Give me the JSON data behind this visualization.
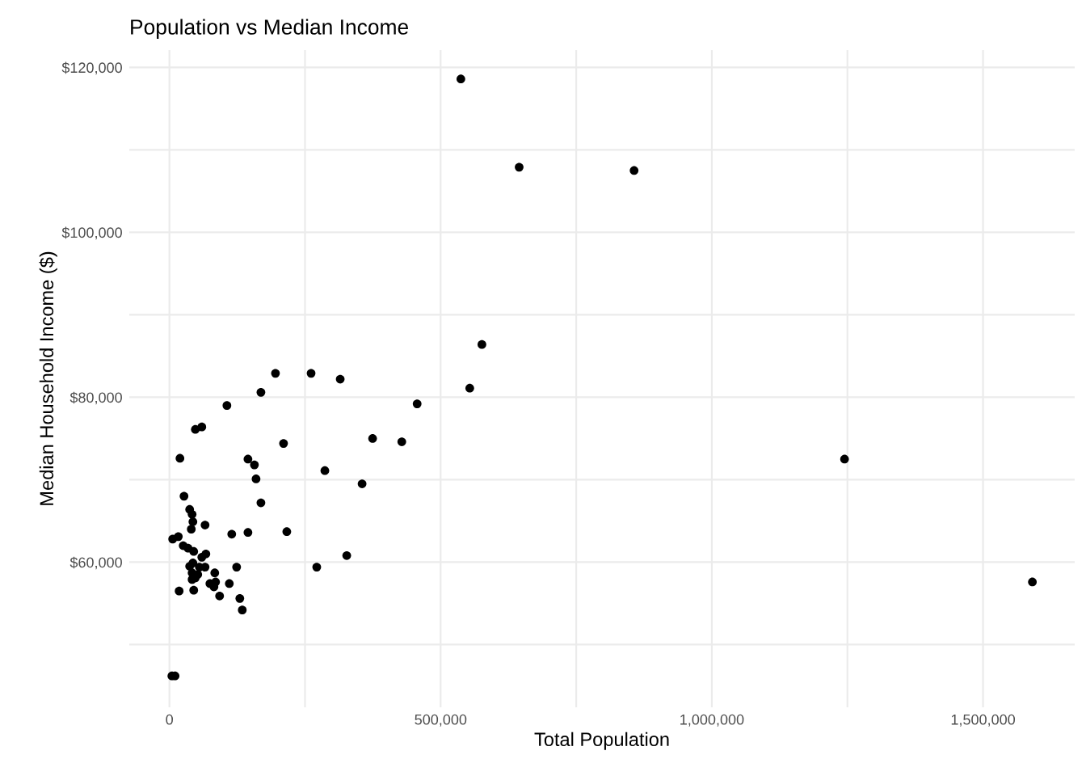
{
  "chart_data": {
    "type": "scatter",
    "title": "Population vs Median Income",
    "xlabel": "Total Population",
    "ylabel": "Median Household Income ($)",
    "x": [
      537300,
      644800,
      856700,
      576100,
      553700,
      456700,
      195500,
      261200,
      314900,
      168700,
      106000,
      59700,
      47800,
      374600,
      428400,
      210400,
      19400,
      144800,
      156700,
      286600,
      159700,
      355200,
      1244700,
      168700,
      26900,
      37300,
      41800,
      43300,
      40300,
      65700,
      114900,
      144800,
      216400,
      6000,
      16400,
      25400,
      34300,
      44800,
      67200,
      59700,
      326900,
      43300,
      37300,
      55200,
      65700,
      123900,
      271600,
      41800,
      52200,
      83600,
      41800,
      47800,
      74600,
      85100,
      82100,
      110400,
      17900,
      44800,
      92500,
      129800,
      134300,
      1591000,
      4500,
      10400
    ],
    "series": [
      {
        "color": "#000000",
        "values": [
          118600,
          107900,
          107500,
          86400,
          81100,
          79200,
          82900,
          82900,
          82200,
          80600,
          79000,
          76400,
          76100,
          75000,
          74600,
          74400,
          72600,
          72500,
          71800,
          71100,
          70100,
          69500,
          72500,
          67200,
          68000,
          66400,
          65800,
          64900,
          64000,
          64500,
          63400,
          63600,
          63700,
          62800,
          63100,
          62000,
          61700,
          61300,
          61000,
          60600,
          60800,
          59900,
          59500,
          59400,
          59400,
          59400,
          59400,
          58700,
          58500,
          58700,
          57900,
          58100,
          57400,
          57600,
          57000,
          57400,
          56500,
          56600,
          55900,
          55600,
          54200,
          57600,
          46200,
          46200
        ]
      }
    ],
    "xlim": [
      -74000,
      1669000
    ],
    "ylim": [
      42400,
      122100
    ],
    "xticks": [
      0,
      {
        "value": 250000,
        "label": null
      },
      {
        "value": 500000,
        "label": "500,000"
      },
      {
        "value": 750000,
        "label": null
      },
      {
        "value": 1000000,
        "label": "1,000,000"
      },
      {
        "value": 1250000,
        "label": null
      },
      {
        "value": 1500000,
        "label": "1,500,000"
      }
    ],
    "yticks": [
      {
        "value": 50000,
        "label": null
      },
      {
        "value": 60000,
        "label": "$60,000"
      },
      {
        "value": 70000,
        "label": null
      },
      {
        "value": 80000,
        "label": "$80,000"
      },
      {
        "value": 90000,
        "label": null
      },
      {
        "value": 100000,
        "label": "$100,000"
      },
      {
        "value": 110000,
        "label": null
      },
      {
        "value": 120000,
        "label": "$120,000"
      }
    ],
    "grid": true,
    "marker": "circle"
  }
}
